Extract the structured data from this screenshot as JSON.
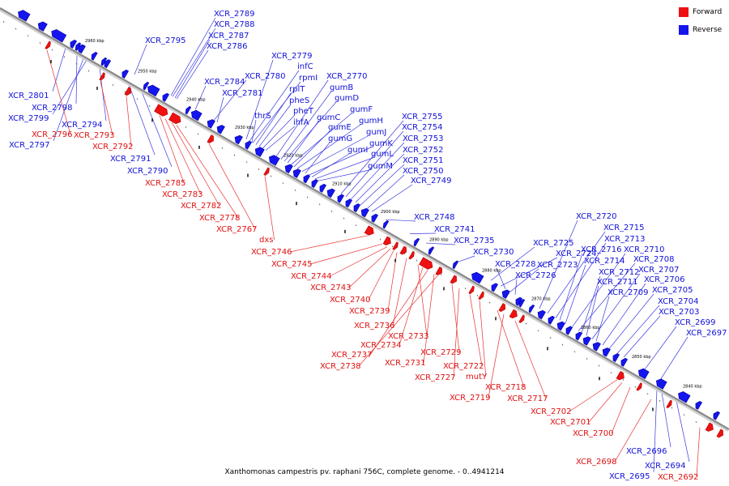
{
  "caption": "Xanthomonas campestris pv. raphani 756C, complete genome. - 0..4941214",
  "colors": {
    "forward": "#ee1111",
    "reverse": "#1515ee",
    "axis": "#888888",
    "leader_forward": "#e83030",
    "leader_reverse": "#3838e0"
  },
  "legend": [
    {
      "label": "Forward",
      "color": "#ee1111"
    },
    {
      "label": "Reverse",
      "color": "#1515ee"
    }
  ],
  "tick_labels": [
    "2960 kbp",
    "2950 kbp",
    "2940 kbp",
    "2930 kbp",
    "2920 kbp",
    "2910 kbp",
    "2900 kbp",
    "2890 kbp",
    "2880 kbp",
    "2870 kbp",
    "2860 kbp",
    "2850 kbp",
    "2840 kbp"
  ],
  "reverse_labels_top": [
    "XCR_2789",
    "XCR_2788",
    "XCR_2787",
    "XCR_2786",
    "XCR_2795",
    "XCR_2779",
    "infC",
    "rpmI",
    "rplT",
    "pheS",
    "pheT",
    "ihfA",
    "XCR_2784",
    "XCR_2780",
    "XCR_2781",
    "thrS",
    "XCR_2770",
    "gumB",
    "gumD",
    "gumC",
    "gumF",
    "gumE",
    "gumH",
    "gumJ",
    "gumG",
    "gumK",
    "gumI",
    "gumL",
    "gumM",
    "XCR_2755",
    "XCR_2754",
    "XCR_2753",
    "XCR_2752",
    "XCR_2751",
    "XCR_2750",
    "XCR_2749",
    "XCR_2748",
    "XCR_2741",
    "XCR_2735",
    "XCR_2730",
    "XCR_2725",
    "XCR_2724",
    "XCR_2728",
    "XCR_2723",
    "XCR_2726",
    "XCR_2720",
    "XCR_2715",
    "XCR_2713",
    "XCR_2716",
    "XCR_2714",
    "XCR_2710",
    "XCR_2708",
    "XCR_2712",
    "XCR_2711",
    "XCR_2707",
    "XCR_2709",
    "XCR_2706",
    "XCR_2705",
    "XCR_2704",
    "XCR_2703",
    "XCR_2699",
    "XCR_2697"
  ],
  "reverse_labels_bottom": [
    "XCR_2801",
    "XCR_2798",
    "XCR_2799",
    "XCR_2794",
    "XCR_2797",
    "XCR_2791",
    "XCR_2790",
    "XCR_2696",
    "XCR_2694",
    "XCR_2695"
  ],
  "forward_labels": [
    "XCR_2796",
    "XCR_2793",
    "XCR_2792",
    "XCR_2785",
    "XCR_2783",
    "XCR_2782",
    "XCR_2778",
    "XCR_2767",
    "dxs",
    "XCR_2746",
    "XCR_2745",
    "XCR_2744",
    "XCR_2743",
    "XCR_2740",
    "XCR_2739",
    "XCR_2736",
    "XCR_2733",
    "XCR_2734",
    "XCR_2737",
    "XCR_2731",
    "XCR_2738",
    "XCR_2729",
    "XCR_2727",
    "XCR_2722",
    "mutY",
    "XCR_2718",
    "XCR_2719",
    "XCR_2717",
    "XCR_2702",
    "XCR_2701",
    "XCR_2700",
    "XCR_2698",
    "XCR_2692"
  ]
}
